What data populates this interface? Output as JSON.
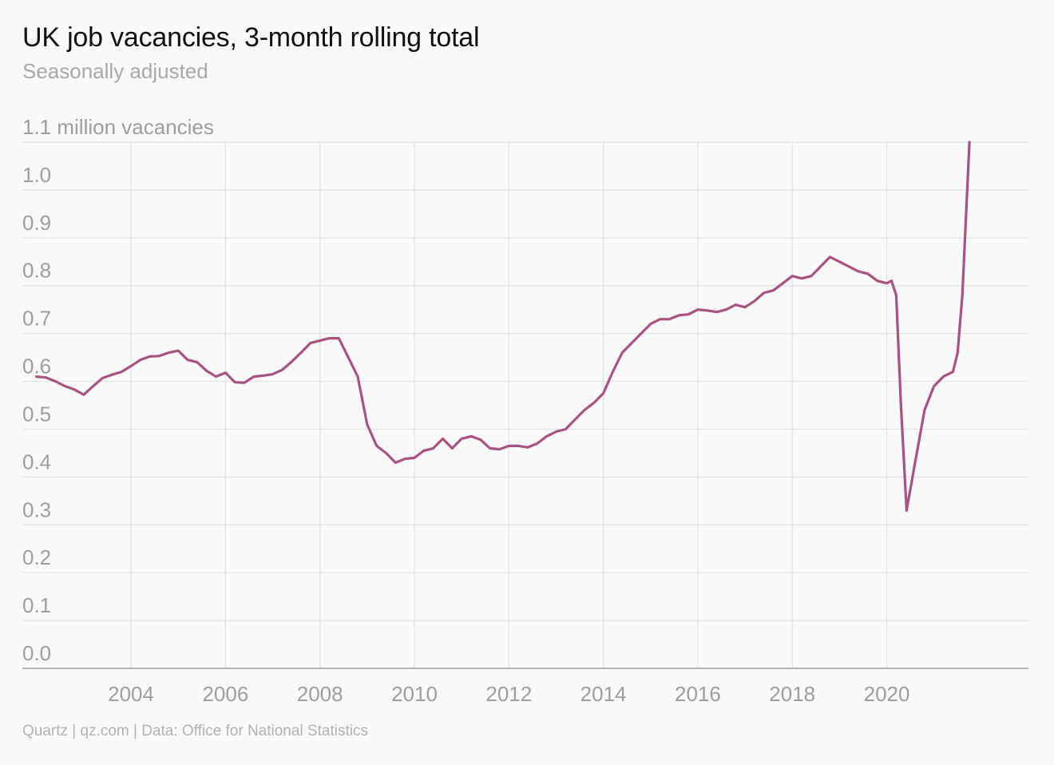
{
  "header": {
    "title": "UK job vacancies, 3-month rolling total",
    "subtitle": "Seasonally adjusted"
  },
  "footer": {
    "credit": "Quartz | qz.com | Data: Office for National Statistics"
  },
  "colors": {
    "line": "#a85384",
    "grid": "#e3e3e3",
    "axis": "#9a9a9a",
    "tick_text": "#9e9e9e"
  },
  "chart_data": {
    "type": "line",
    "title": "UK job vacancies, 3-month rolling total",
    "subtitle": "Seasonally adjusted",
    "y_unit_label": "1.1 million vacancies",
    "ylim": [
      0,
      1.1
    ],
    "y_ticks": [
      0.0,
      0.1,
      0.2,
      0.3,
      0.4,
      0.5,
      0.6,
      0.7,
      0.8,
      0.9,
      1.0,
      1.1
    ],
    "y_tick_labels": [
      "0.0",
      "0.1",
      "0.2",
      "0.3",
      "0.4",
      "0.5",
      "0.6",
      "0.7",
      "0.8",
      "0.9",
      "1.0",
      "1.1 million vacancies"
    ],
    "xlim": [
      2001.7,
      2023.0
    ],
    "x_ticks": [
      2004,
      2006,
      2008,
      2010,
      2012,
      2014,
      2016,
      2018,
      2020
    ],
    "x_tick_labels": [
      "2004",
      "2006",
      "2008",
      "2010",
      "2012",
      "2014",
      "2016",
      "2018",
      "2020"
    ],
    "grid": true,
    "series": [
      {
        "x": [
          2002.0,
          2002.2,
          2002.4,
          2002.6,
          2002.8,
          2003.0,
          2003.2,
          2003.4,
          2003.6,
          2003.8,
          2004.0,
          2004.2,
          2004.4,
          2004.6,
          2004.8,
          2005.0,
          2005.2,
          2005.4,
          2005.6,
          2005.8,
          2006.0,
          2006.2,
          2006.4,
          2006.6,
          2006.8,
          2007.0,
          2007.2,
          2007.4,
          2007.6,
          2007.8,
          2008.0,
          2008.2,
          2008.4,
          2008.6,
          2008.8,
          2009.0,
          2009.2,
          2009.4,
          2009.6,
          2009.8,
          2010.0,
          2010.2,
          2010.4,
          2010.6,
          2010.8,
          2011.0,
          2011.2,
          2011.4,
          2011.6,
          2011.8,
          2012.0,
          2012.2,
          2012.4,
          2012.6,
          2012.8,
          2013.0,
          2013.2,
          2013.4,
          2013.6,
          2013.8,
          2014.0,
          2014.2,
          2014.4,
          2014.6,
          2014.8,
          2015.0,
          2015.2,
          2015.4,
          2015.6,
          2015.8,
          2016.0,
          2016.2,
          2016.4,
          2016.6,
          2016.8,
          2017.0,
          2017.2,
          2017.4,
          2017.6,
          2017.8,
          2018.0,
          2018.2,
          2018.4,
          2018.6,
          2018.8,
          2019.0,
          2019.2,
          2019.4,
          2019.6,
          2019.8,
          2020.0,
          2020.1,
          2020.2,
          2020.3,
          2020.42,
          2020.6,
          2020.8,
          2021.0,
          2021.2,
          2021.4,
          2021.5,
          2021.6,
          2021.75
        ],
        "y": [
          0.61,
          0.608,
          0.6,
          0.59,
          0.583,
          0.572,
          0.59,
          0.607,
          0.614,
          0.62,
          0.632,
          0.645,
          0.652,
          0.653,
          0.66,
          0.664,
          0.645,
          0.64,
          0.622,
          0.61,
          0.618,
          0.598,
          0.597,
          0.61,
          0.612,
          0.615,
          0.624,
          0.641,
          0.66,
          0.68,
          0.685,
          0.69,
          0.69,
          0.65,
          0.61,
          0.51,
          0.465,
          0.45,
          0.43,
          0.438,
          0.44,
          0.455,
          0.46,
          0.48,
          0.46,
          0.48,
          0.485,
          0.478,
          0.46,
          0.458,
          0.465,
          0.465,
          0.462,
          0.47,
          0.485,
          0.495,
          0.5,
          0.52,
          0.54,
          0.555,
          0.575,
          0.62,
          0.66,
          0.68,
          0.7,
          0.72,
          0.73,
          0.73,
          0.738,
          0.74,
          0.75,
          0.748,
          0.745,
          0.75,
          0.76,
          0.755,
          0.768,
          0.785,
          0.79,
          0.805,
          0.82,
          0.815,
          0.82,
          0.84,
          0.86,
          0.85,
          0.84,
          0.83,
          0.825,
          0.81,
          0.805,
          0.81,
          0.78,
          0.55,
          0.33,
          0.43,
          0.54,
          0.59,
          0.61,
          0.62,
          0.66,
          0.78,
          1.1
        ]
      }
    ]
  }
}
